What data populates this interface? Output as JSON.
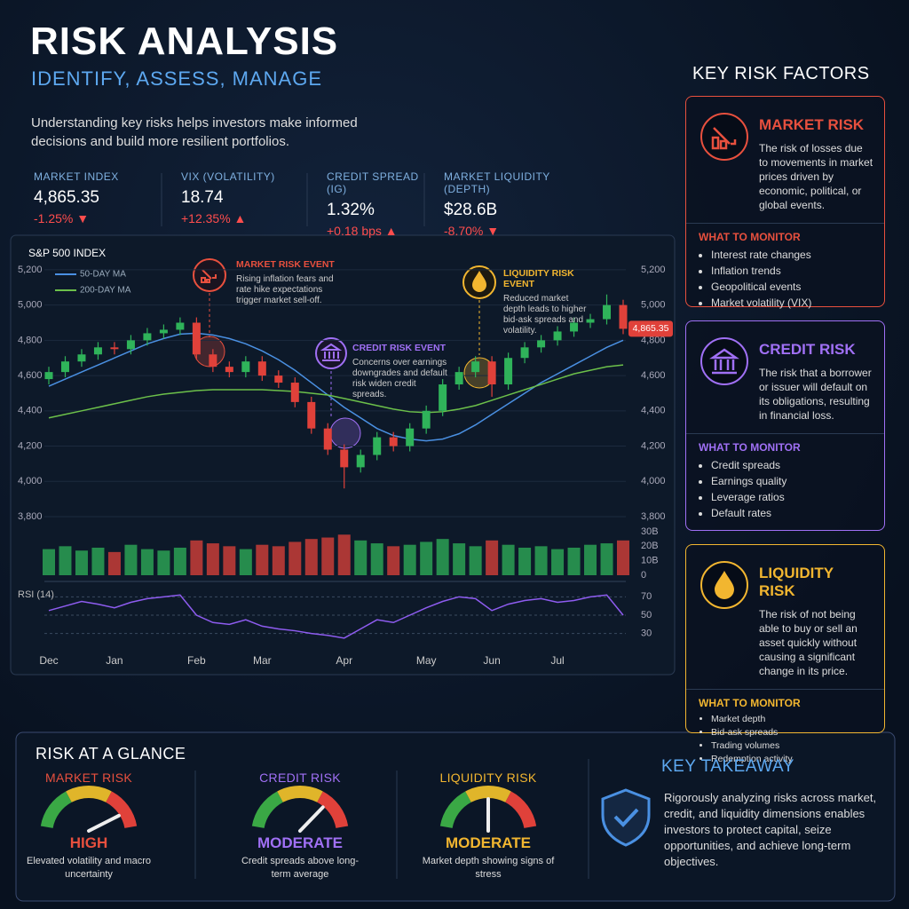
{
  "header": {
    "title": "RISK ANALYSIS",
    "subtitle": "IDENTIFY, ASSESS, MANAGE",
    "intro": "Understanding key risks helps investors make informed decisions and build more resilient portfolios."
  },
  "stats": [
    {
      "label": "MARKET INDEX",
      "value": "4,865.35",
      "change": "-1.25% ▼"
    },
    {
      "label": "VIX (VOLATILITY)",
      "value": "18.74",
      "change": "+12.35% ▲"
    },
    {
      "label": "CREDIT SPREAD (IG)",
      "value": "1.32%",
      "change": "+0.18 bps ▲"
    },
    {
      "label": "MARKET LIQUIDITY (DEPTH)",
      "value": "$28.6B",
      "change": "-8.70% ▼"
    }
  ],
  "chart_data": {
    "type": "candlestick",
    "title": "S&P 500 INDEX",
    "categories": [
      "Dec",
      null,
      null,
      null,
      "Jan",
      null,
      null,
      null,
      null,
      "Feb",
      null,
      null,
      null,
      "Mar",
      null,
      null,
      null,
      null,
      "Apr",
      null,
      null,
      null,
      null,
      "May",
      null,
      null,
      null,
      "Jun",
      null,
      null,
      null,
      "Jul",
      null,
      null,
      null,
      null
    ],
    "open": [
      4580,
      4620,
      4680,
      4720,
      4760,
      4750,
      4800,
      4840,
      4860,
      4900,
      4720,
      4650,
      4620,
      4680,
      4600,
      4560,
      4450,
      4300,
      4180,
      4080,
      4150,
      4250,
      4200,
      4300,
      4400,
      4550,
      4620,
      4680,
      4550,
      4700,
      4760,
      4800,
      4850,
      4900,
      4920,
      5000
    ],
    "high": [
      4650,
      4710,
      4750,
      4790,
      4790,
      4830,
      4870,
      4890,
      4930,
      4930,
      4750,
      4680,
      4710,
      4710,
      4630,
      4590,
      4480,
      4330,
      4210,
      4180,
      4280,
      4280,
      4330,
      4430,
      4580,
      4650,
      4710,
      4710,
      4730,
      4790,
      4830,
      4880,
      4930,
      4950,
      5060,
      5030
    ],
    "low": [
      4550,
      4590,
      4650,
      4690,
      4720,
      4720,
      4770,
      4810,
      4830,
      4690,
      4620,
      4590,
      4590,
      4570,
      4530,
      4420,
      4270,
      4150,
      3960,
      4050,
      4120,
      4170,
      4170,
      4270,
      4370,
      4520,
      4590,
      4480,
      4520,
      4670,
      4730,
      4770,
      4820,
      4870,
      4890,
      4835
    ],
    "close": [
      4620,
      4680,
      4720,
      4760,
      4750,
      4800,
      4840,
      4860,
      4900,
      4720,
      4650,
      4620,
      4680,
      4600,
      4560,
      4450,
      4300,
      4180,
      4080,
      4150,
      4250,
      4200,
      4300,
      4400,
      4550,
      4620,
      4680,
      4550,
      4700,
      4760,
      4800,
      4850,
      4900,
      4920,
      5000,
      4865.35
    ],
    "last_label": "4,865.35",
    "up_color": "#2fb35a",
    "down_color": "#e0413a",
    "ylim": [
      3800,
      5260
    ],
    "yticks": [
      {
        "value": 3800,
        "label": "3,800"
      },
      {
        "value": 4000,
        "label": "4,000"
      },
      {
        "value": 4200,
        "label": "4,200"
      },
      {
        "value": 4400,
        "label": "4,400"
      },
      {
        "value": 4600,
        "label": "4,600"
      },
      {
        "value": 4800,
        "label": "4,800"
      },
      {
        "value": 5000,
        "label": "5,000"
      },
      {
        "value": 5200,
        "label": "5,200"
      }
    ],
    "series": [
      {
        "name": "50-DAY MA",
        "color": "#4a90e2",
        "values": [
          4540,
          4580,
          4620,
          4660,
          4700,
          4740,
          4780,
          4810,
          4835,
          4840,
          4830,
          4810,
          4780,
          4740,
          4690,
          4630,
          4560,
          4490,
          4420,
          4360,
          4300,
          4260,
          4240,
          4230,
          4240,
          4270,
          4320,
          4380,
          4440,
          4500,
          4560,
          4610,
          4660,
          4710,
          4760,
          4800
        ]
      },
      {
        "name": "200-DAY MA",
        "color": "#6cc04a",
        "values": [
          4360,
          4380,
          4400,
          4420,
          4440,
          4460,
          4480,
          4495,
          4505,
          4515,
          4520,
          4520,
          4520,
          4520,
          4515,
          4510,
          4500,
          4490,
          4470,
          4450,
          4430,
          4410,
          4395,
          4390,
          4395,
          4410,
          4430,
          4460,
          4490,
          4520,
          4550,
          4580,
          4610,
          4630,
          4650,
          4660
        ]
      }
    ],
    "volume": {
      "values": [
        18,
        20,
        17,
        19,
        16,
        21,
        18,
        17,
        19,
        24,
        22,
        20,
        18,
        21,
        20,
        23,
        25,
        26,
        28,
        24,
        22,
        20,
        21,
        23,
        25,
        22,
        20,
        24,
        21,
        19,
        20,
        18,
        19,
        21,
        22,
        24
      ],
      "ylim": [
        0,
        30
      ],
      "yticks": [
        0,
        {
          "value": 10,
          "label": "10B"
        },
        {
          "value": 20,
          "label": "20B"
        },
        {
          "value": 30,
          "label": "30B"
        }
      ]
    },
    "rsi": {
      "name": "RSI (14)",
      "color": "#8e5cf0",
      "values": [
        55,
        60,
        65,
        62,
        58,
        64,
        68,
        70,
        72,
        50,
        42,
        40,
        45,
        38,
        35,
        33,
        30,
        28,
        25,
        35,
        45,
        42,
        50,
        58,
        65,
        70,
        68,
        55,
        62,
        66,
        68,
        64,
        66,
        70,
        72,
        50
      ],
      "ylim": [
        20,
        80
      ],
      "yticks": [
        30,
        50,
        70
      ]
    },
    "annotations": [
      {
        "title": "MARKET RISK EVENT",
        "text": "Rising inflation fears and rate hike expectations trigger market sell-off."
      },
      {
        "title": "CREDIT RISK EVENT",
        "text": "Concerns over earnings downgrades and default risk widen credit spreads."
      },
      {
        "title": "LIQUIDITY RISK EVENT",
        "text": "Reduced market depth leads to higher bid-ask spreads and volatility."
      }
    ]
  },
  "risk_factors": {
    "title": "KEY RISK FACTORS",
    "cards": [
      {
        "title": "MARKET RISK",
        "color": "#e8503e",
        "text": "The risk of losses due to movements in market prices driven by economic, political, or global events.",
        "monitor_title": "WHAT TO MONITOR",
        "items": [
          "Interest rate changes",
          "Inflation trends",
          "Geopolitical events",
          "Market volatility (VIX)"
        ]
      },
      {
        "title": "CREDIT RISK",
        "color": "#a070f5",
        "text": "The risk that a borrower or issuer will default on its obligations, resulting in financial loss.",
        "monitor_title": "WHAT TO MONITOR",
        "items": [
          "Credit spreads",
          "Earnings quality",
          "Leverage ratios",
          "Default rates"
        ]
      },
      {
        "title": "LIQUIDITY RISK",
        "color": "#f2b630",
        "text": "The risk of not being able to buy or sell an asset quickly without causing a significant change in its price.",
        "monitor_title": "WHAT TO MONITOR",
        "items": [
          "Market depth",
          "Bid-ask spreads",
          "Trading volumes",
          "Redemption activity"
        ]
      }
    ]
  },
  "glance": {
    "title": "RISK AT A GLANCE",
    "gauges": [
      {
        "title": "MARKET RISK",
        "color": "#e8503e",
        "level": "HIGH",
        "text": "Elevated volatility and macro uncertainty"
      },
      {
        "title": "CREDIT RISK",
        "color": "#a070f5",
        "level": "MODERATE",
        "text": "Credit spreads above long-term average"
      },
      {
        "title": "LIQUIDITY RISK",
        "color": "#f2b630",
        "level": "MODERATE",
        "text": "Market depth showing signs of stress"
      }
    ]
  },
  "takeaway": {
    "title": "KEY TAKEAWAY",
    "text": "Rigorously analyzing risks across market, credit, and liquidity dimensions enables investors to protect capital, seize opportunities, and achieve long-term objectives."
  }
}
